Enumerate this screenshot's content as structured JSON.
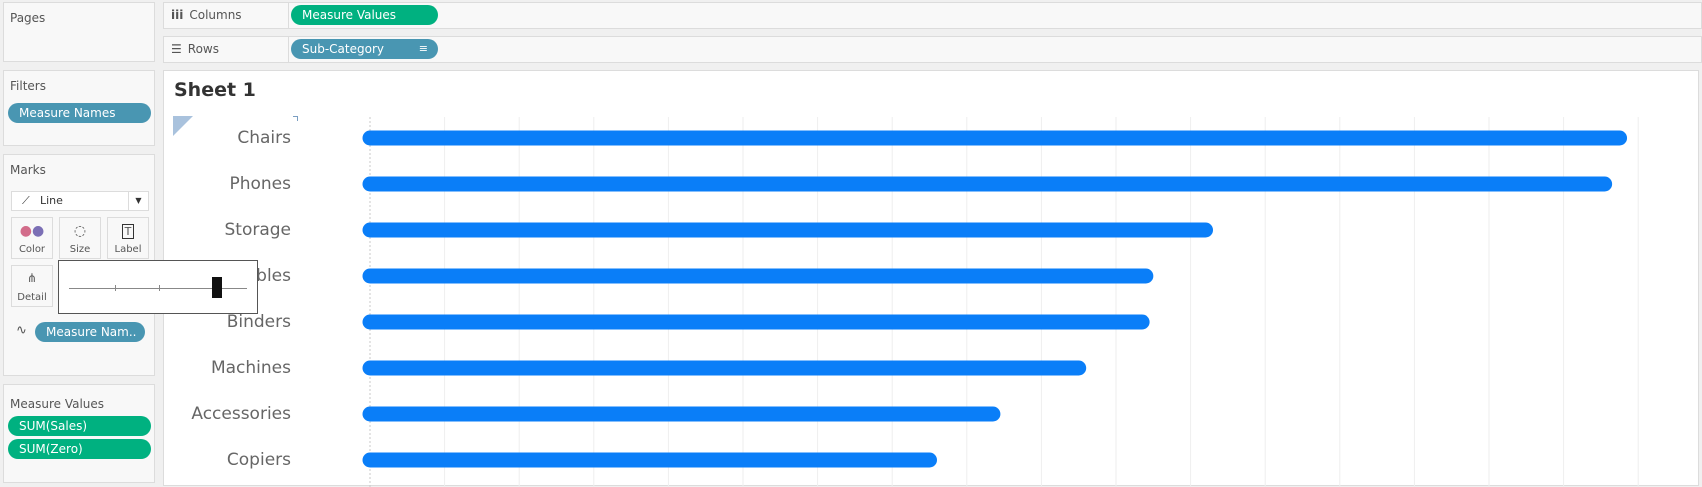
{
  "pages": {
    "title": "Pages"
  },
  "filters": {
    "title": "Filters",
    "pills": [
      "Measure Names"
    ]
  },
  "marks": {
    "title": "Marks",
    "mark_type": "Line",
    "buttons": {
      "color": "Color",
      "size": "Size",
      "label": "Label",
      "detail": "Detail"
    },
    "path_pill": "Measure Nam.."
  },
  "measure_values": {
    "title": "Measure Values",
    "pills": [
      "SUM(Sales)",
      "SUM(Zero)"
    ]
  },
  "shelves": {
    "columns": {
      "label": "Columns",
      "pill": "Measure Values"
    },
    "rows": {
      "label": "Rows",
      "pill": "Sub-Category"
    }
  },
  "sheet": {
    "title": "Sheet 1"
  },
  "size_slider": {
    "value_fraction": 0.83
  },
  "colors": {
    "bar": "#0a7ef8",
    "teal_pill": "#4996b2",
    "green_pill": "#00b180"
  },
  "chart_data": {
    "type": "bar",
    "orientation": "horizontal",
    "mark": "line",
    "categories": [
      "Chairs",
      "Phones",
      "Storage",
      "Tables",
      "Binders",
      "Machines",
      "Accessories",
      "Copiers"
    ],
    "category_labels_visible": [
      "Chairs",
      "Phones",
      "Storage",
      "ables",
      "Binders",
      "Machines",
      "Accessories",
      "Copiers"
    ],
    "values": [
      335000,
      331000,
      224000,
      208000,
      207000,
      190000,
      167000,
      150000
    ],
    "grid": true,
    "xlim": [
      0,
      340000
    ]
  }
}
